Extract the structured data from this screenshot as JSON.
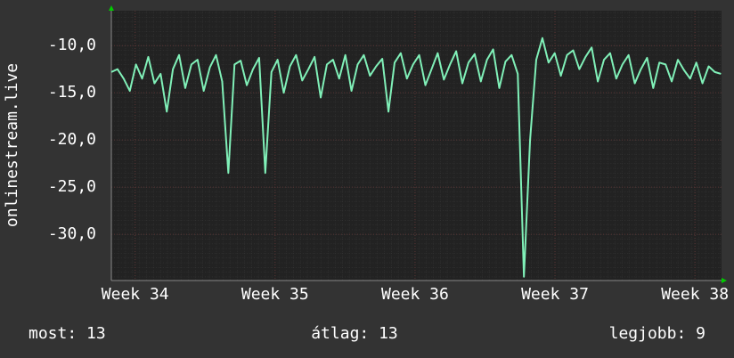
{
  "chart_data": {
    "type": "line",
    "y_label": "onlinestream.live",
    "x": [
      33.83,
      33.874,
      33.918,
      33.962,
      34.006,
      34.05,
      34.094,
      34.138,
      34.182,
      34.226,
      34.27,
      34.314,
      34.358,
      34.402,
      34.446,
      34.49,
      34.534,
      34.578,
      34.622,
      34.666,
      34.71,
      34.754,
      34.798,
      34.842,
      34.886,
      34.93,
      34.974,
      35.018,
      35.062,
      35.106,
      35.15,
      35.194,
      35.238,
      35.282,
      35.326,
      35.37,
      35.414,
      35.458,
      35.502,
      35.546,
      35.59,
      35.634,
      35.678,
      35.722,
      35.766,
      35.81,
      35.854,
      35.898,
      35.942,
      35.986,
      36.03,
      36.074,
      36.118,
      36.162,
      36.206,
      36.25,
      36.294,
      36.338,
      36.382,
      36.426,
      36.47,
      36.514,
      36.558,
      36.602,
      36.646,
      36.69,
      36.734,
      36.778,
      36.822,
      36.866,
      36.91,
      36.954,
      36.998,
      37.042,
      37.086,
      37.13,
      37.174,
      37.218,
      37.262,
      37.306,
      37.35,
      37.394,
      37.438,
      37.482,
      37.526,
      37.57,
      37.614,
      37.658,
      37.702,
      37.746,
      37.79,
      37.834,
      37.878,
      37.922,
      37.966,
      38.01,
      38.054,
      38.098,
      38.142,
      38.186
    ],
    "series": [
      {
        "name": "onlinestream.live",
        "color": "#80f0b8",
        "values": [
          -12.8,
          -12.5,
          -13.5,
          -14.8,
          -12.0,
          -13.5,
          -11.2,
          -14.0,
          -13.0,
          -17.0,
          -12.5,
          -11.0,
          -14.5,
          -12.0,
          -11.5,
          -14.8,
          -12.3,
          -11.0,
          -13.8,
          -23.5,
          -12.0,
          -11.6,
          -14.2,
          -12.5,
          -11.3,
          -23.5,
          -12.8,
          -11.5,
          -15.0,
          -12.2,
          -11.0,
          -13.7,
          -12.5,
          -11.2,
          -15.5,
          -12.0,
          -11.5,
          -13.5,
          -11.0,
          -14.8,
          -12.0,
          -11.0,
          -13.2,
          -12.2,
          -11.4,
          -17.0,
          -11.8,
          -10.8,
          -13.5,
          -12.0,
          -11.0,
          -14.2,
          -12.5,
          -10.8,
          -13.6,
          -12.0,
          -10.6,
          -14.0,
          -11.8,
          -10.9,
          -13.8,
          -11.5,
          -10.4,
          -14.5,
          -11.7,
          -11.0,
          -13.0,
          -34.5,
          -20.0,
          -11.5,
          -9.2,
          -11.8,
          -10.8,
          -13.2,
          -11.0,
          -10.5,
          -12.5,
          -11.2,
          -10.2,
          -13.8,
          -11.5,
          -10.8,
          -13.5,
          -12.0,
          -11.0,
          -14.0,
          -12.5,
          -11.3,
          -14.5,
          -11.8,
          -12.0,
          -13.8,
          -11.5,
          -12.6,
          -13.5,
          -11.8,
          -14.0,
          -12.2,
          -12.8,
          -13.0
        ]
      }
    ],
    "xlim": [
      33.83,
      38.19
    ],
    "ylim": [
      -34.9,
      -6.3
    ],
    "xticks": [
      {
        "value": 34,
        "label": "Week 34"
      },
      {
        "value": 35,
        "label": "Week 35"
      },
      {
        "value": 36,
        "label": "Week 36"
      },
      {
        "value": 37,
        "label": "Week 37"
      },
      {
        "value": 38,
        "label": "Week 38"
      }
    ],
    "yticks": [
      {
        "value": -10,
        "label": "-10,0"
      },
      {
        "value": -15,
        "label": "-15,0"
      },
      {
        "value": -20,
        "label": "-20,0"
      },
      {
        "value": -25,
        "label": "-25,0"
      },
      {
        "value": -30,
        "label": "-30,0"
      }
    ],
    "grid": true,
    "legend": [
      "most: 13",
      "átlag: 13",
      "legjobb: 9"
    ]
  }
}
